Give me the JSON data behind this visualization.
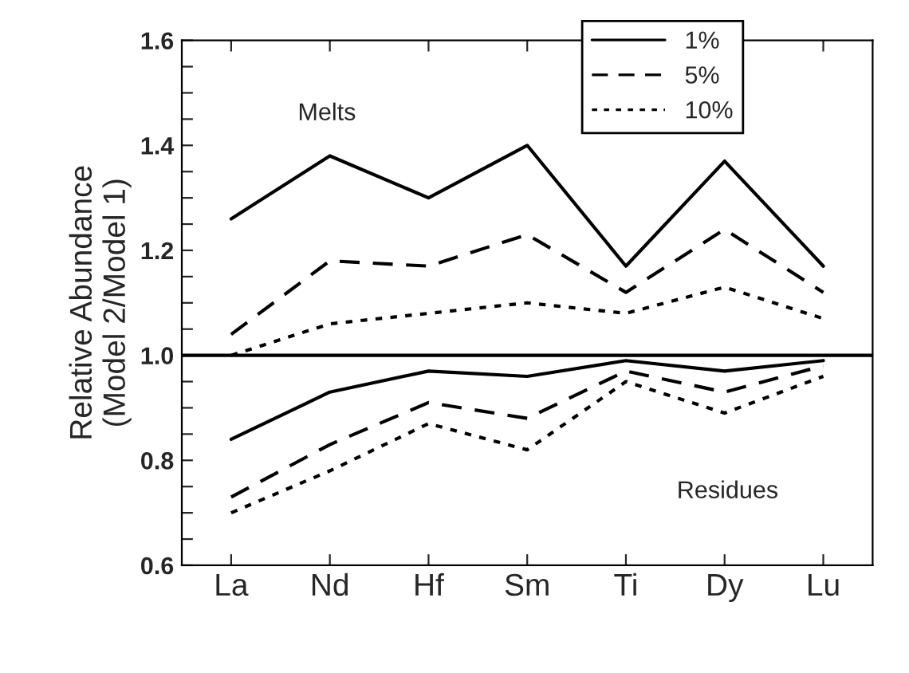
{
  "chart_data": {
    "type": "line",
    "ylabel": "Relative Abundance\n(Model 2/Model 1)",
    "categories": [
      "La",
      "Nd",
      "Hf",
      "Sm",
      "Ti",
      "Dy",
      "Lu"
    ],
    "series": [
      {
        "name": "1%",
        "color": "#000000",
        "line_style": "solid",
        "values": [
          1.26,
          1.38,
          1.3,
          1.4,
          1.17,
          1.37,
          1.17
        ]
      },
      {
        "name": "5%",
        "color": "#000000",
        "line_style": "dashed",
        "values": [
          1.04,
          1.18,
          1.17,
          1.23,
          1.12,
          1.24,
          1.12
        ]
      },
      {
        "name": "10%",
        "color": "#000000",
        "line_style": "dotted",
        "values": [
          1.0,
          1.06,
          1.08,
          1.1,
          1.08,
          1.13,
          1.07
        ]
      },
      {
        "color": "#000000",
        "line_style": "solid",
        "values": [
          0.84,
          0.93,
          0.97,
          0.96,
          0.99,
          0.97,
          0.99
        ]
      },
      {
        "color": "#000000",
        "line_style": "dashed",
        "values": [
          0.73,
          0.83,
          0.91,
          0.88,
          0.97,
          0.93,
          0.98
        ]
      },
      {
        "color": "#000000",
        "line_style": "dotted",
        "values": [
          0.7,
          0.78,
          0.87,
          0.82,
          0.95,
          0.89,
          0.96
        ]
      }
    ],
    "ylim": [
      0.6,
      1.6
    ],
    "yticks": [
      0.6,
      {
        "value": 0.65,
        "label": null
      },
      {
        "value": 0.7,
        "label": null
      },
      {
        "value": 0.75,
        "label": null
      },
      0.8,
      {
        "value": 0.85,
        "label": null
      },
      {
        "value": 0.9,
        "label": null
      },
      {
        "value": 0.95,
        "label": null
      },
      {
        "value": 1.0,
        "label": "1.0"
      },
      {
        "value": 1.05,
        "label": null
      },
      {
        "value": 1.1,
        "label": null
      },
      {
        "value": 1.15,
        "label": null
      },
      1.2,
      {
        "value": 1.25,
        "label": null
      },
      {
        "value": 1.3,
        "label": null
      },
      {
        "value": 1.35,
        "label": null
      },
      1.4,
      {
        "value": 1.45,
        "label": null
      },
      {
        "value": 1.5,
        "label": null
      },
      {
        "value": 1.55,
        "label": null
      },
      1.6
    ],
    "ref_lines": [
      {
        "axis": "y",
        "value": 1.0,
        "color": "#000000",
        "line_style": "solid"
      }
    ],
    "annotations": [
      "Melts",
      "Residues"
    ],
    "legend": "top right",
    "grid": false,
    "marker": "none"
  }
}
